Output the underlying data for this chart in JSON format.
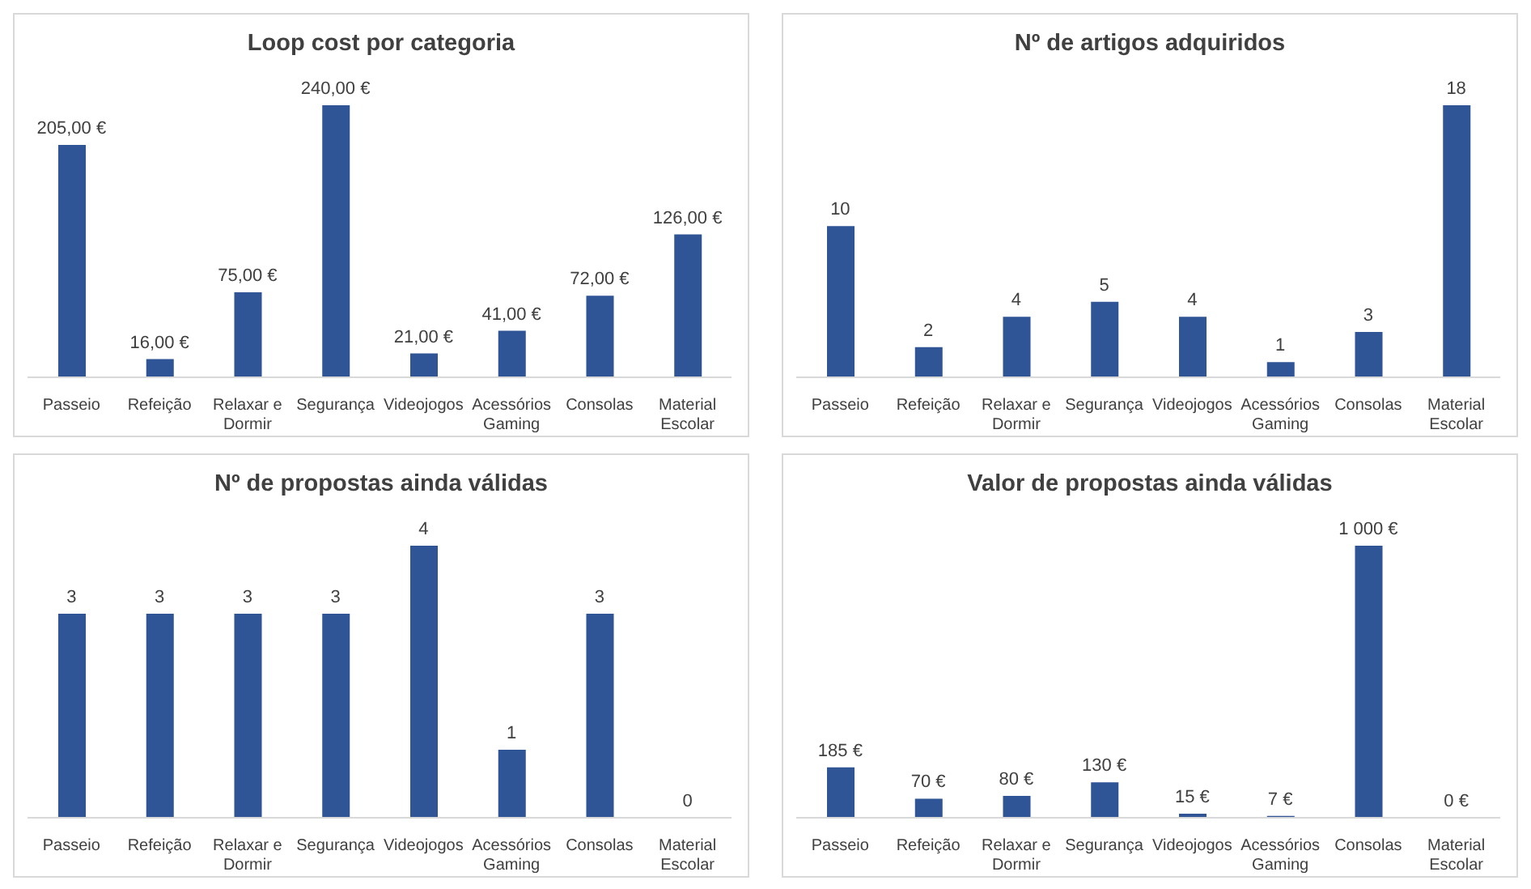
{
  "chart_data": [
    {
      "type": "bar",
      "title": "Loop cost por categoria",
      "categories": [
        "Passeio",
        "Refeição",
        "Relaxar e Dormir",
        "Segurança",
        "Videojogos",
        "Acessórios Gaming",
        "Consolas",
        "Material Escolar"
      ],
      "color": "#2f5597",
      "values": [
        205,
        16,
        75,
        240,
        21,
        41,
        72,
        126
      ],
      "value_labels": [
        "205,00 €",
        "16,00 €",
        "75,00 €",
        "240,00 €",
        "21,00 €",
        "41,00 €",
        "72,00 €",
        "126,00 €"
      ]
    },
    {
      "type": "bar",
      "title": "Nº de artigos adquiridos",
      "categories": [
        "Passeio",
        "Refeição",
        "Relaxar e Dormir",
        "Segurança",
        "Videojogos",
        "Acessórios Gaming",
        "Consolas",
        "Material Escolar"
      ],
      "color": "#2f5597",
      "values": [
        10,
        2,
        4,
        5,
        4,
        1,
        3,
        18
      ],
      "data_labels": true
    },
    {
      "type": "bar",
      "title": "Nº de propostas ainda válidas",
      "categories": [
        "Passeio",
        "Refeição",
        "Relaxar e Dormir",
        "Segurança",
        "Videojogos",
        "Acessórios Gaming",
        "Consolas",
        "Material Escolar"
      ],
      "color": "#2f5597",
      "values": [
        3,
        3,
        3,
        3,
        4,
        1,
        3,
        0
      ],
      "data_labels": true
    },
    {
      "type": "bar",
      "title": "Valor de propostas ainda válidas",
      "categories": [
        "Passeio",
        "Refeição",
        "Relaxar e Dormir",
        "Segurança",
        "Videojogos",
        "Acessórios Gaming",
        "Consolas",
        "Material Escolar"
      ],
      "color": "#2f5597",
      "values": [
        185,
        70,
        80,
        130,
        15,
        7,
        1000,
        0
      ],
      "value_labels": [
        "185 €",
        "70 €",
        "80 €",
        "130 €",
        "15 €",
        "7 €",
        "1 000 €",
        "0 €"
      ]
    }
  ]
}
